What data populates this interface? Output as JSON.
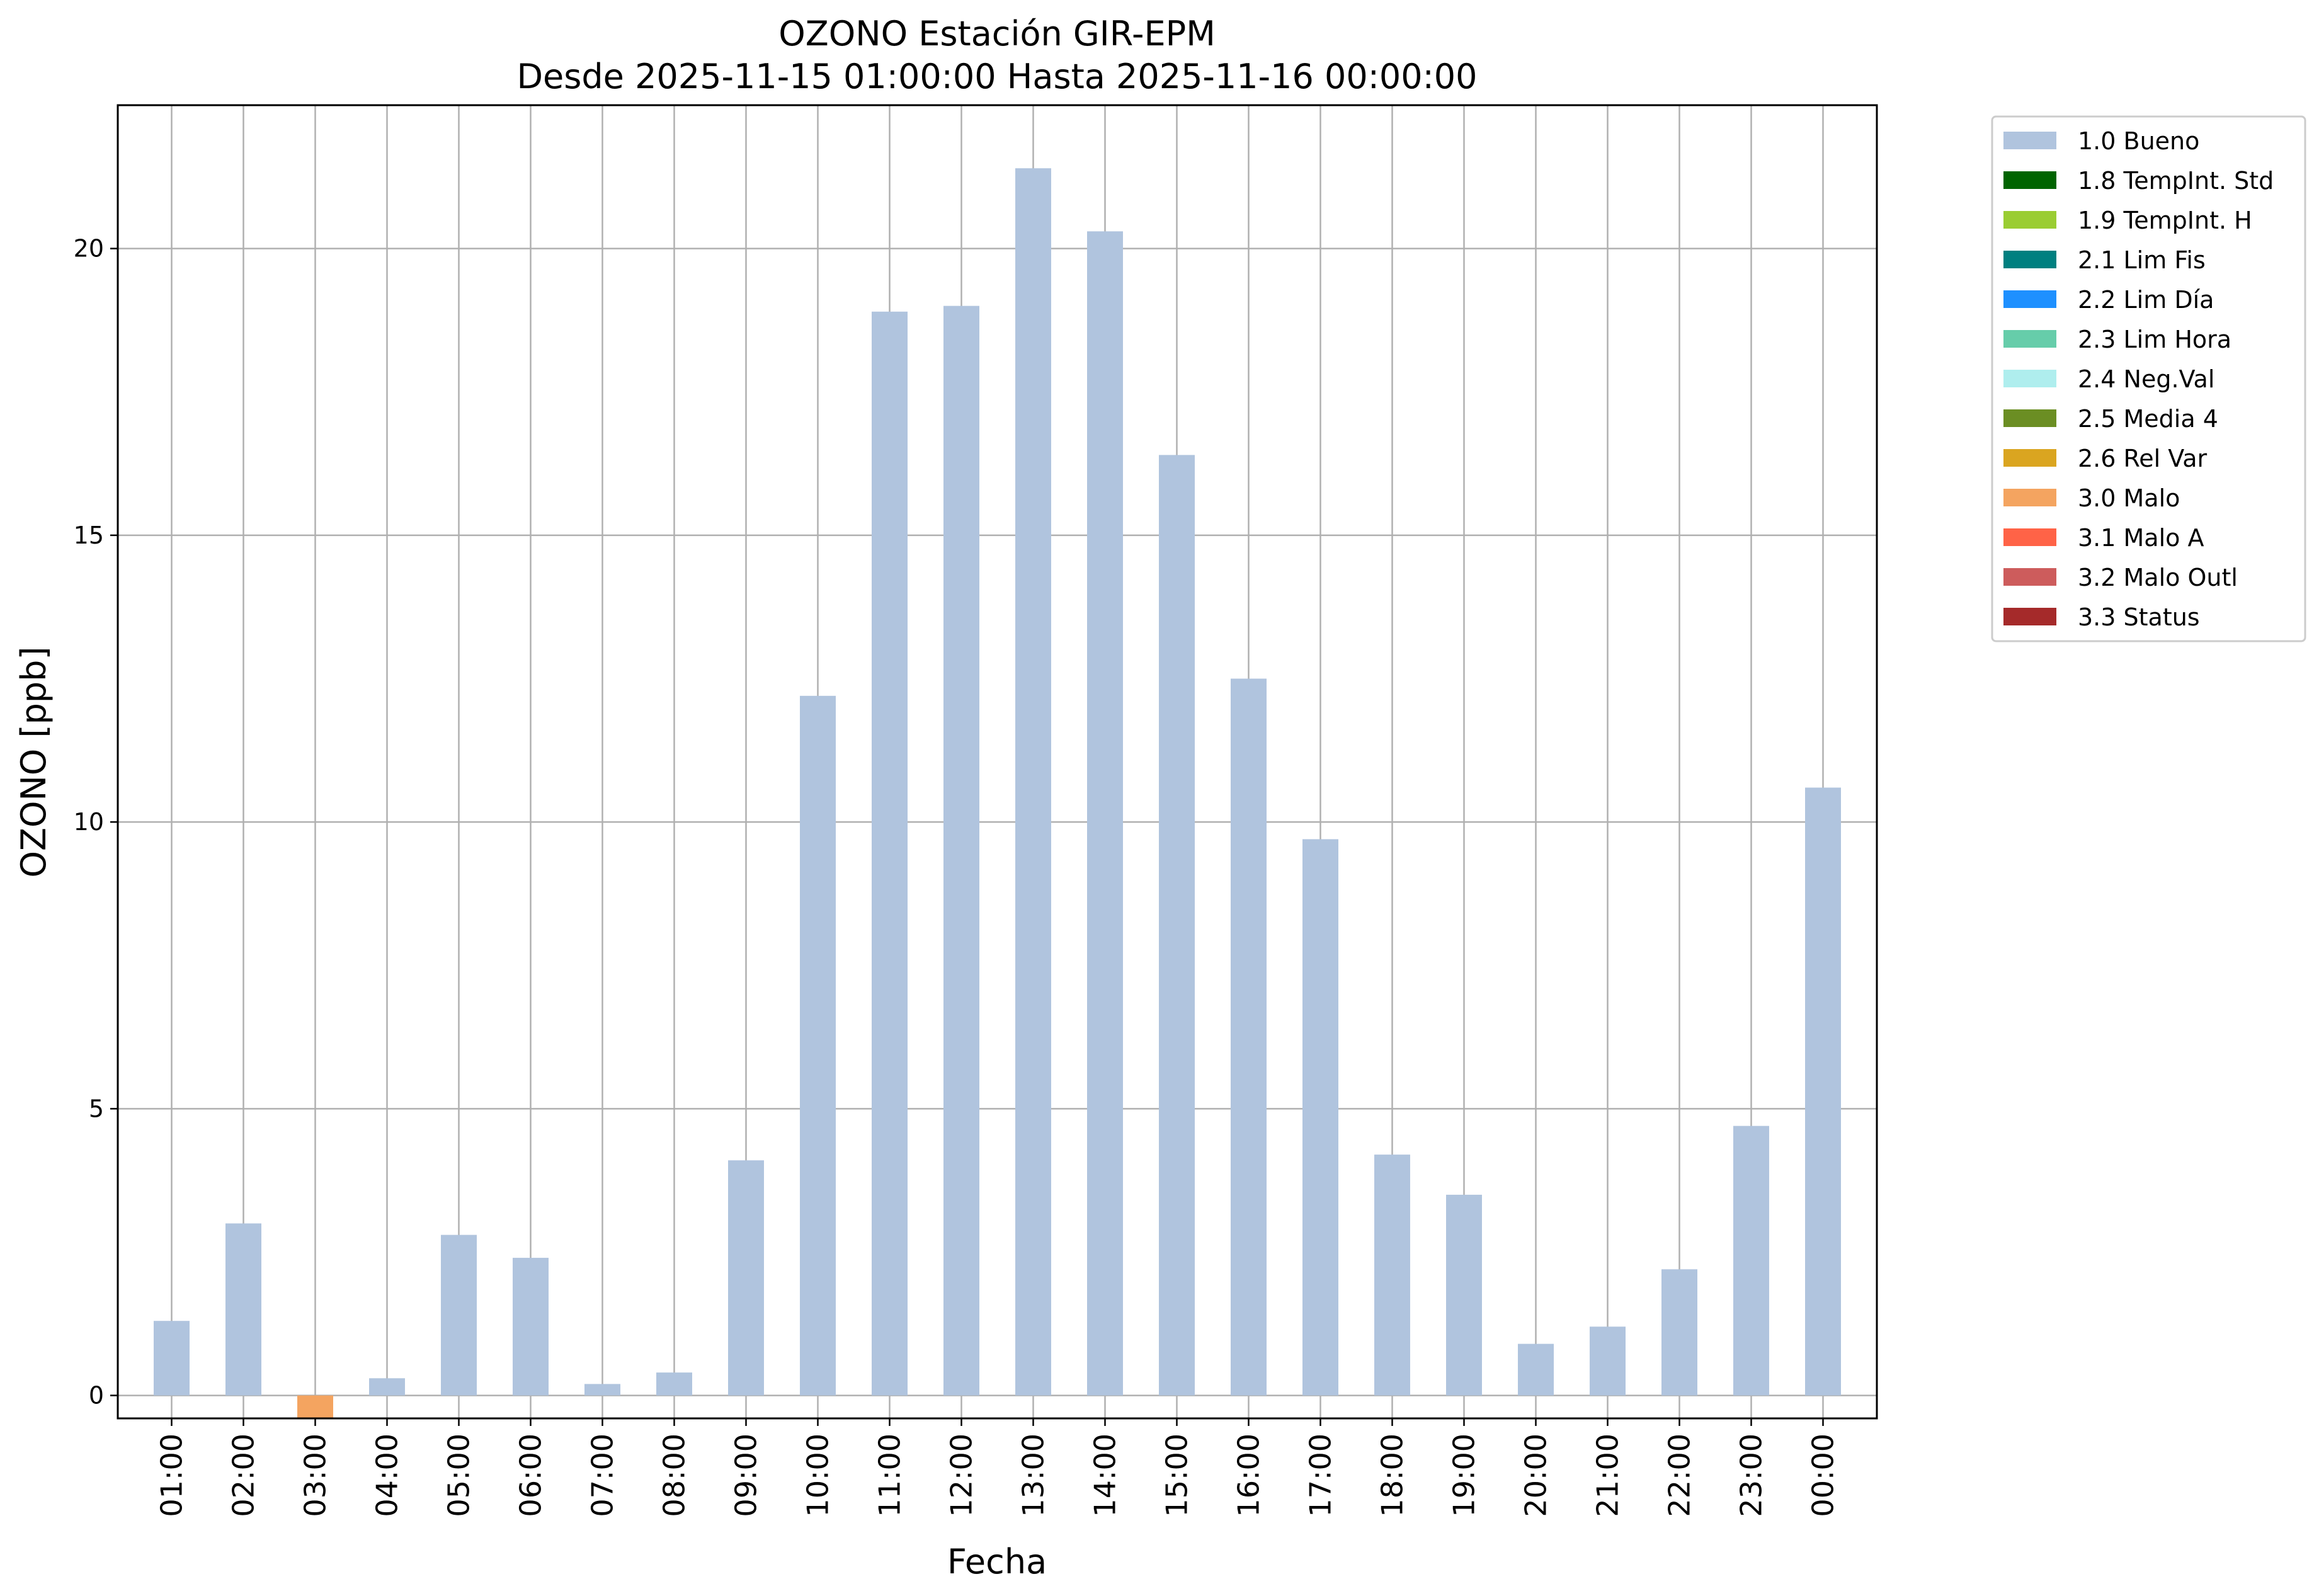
{
  "chart_data": {
    "type": "bar",
    "title": "OZONO Estación GIR-EPM",
    "subtitle": "Desde 2025-11-15 01:00:00 Hasta 2025-11-16 00:00:00",
    "xlabel": "Fecha",
    "ylabel": "OZONO [ppb]",
    "ylim": [
      -0.4,
      22.5
    ],
    "yticks": [
      0,
      5,
      10,
      15,
      20
    ],
    "grid": true,
    "legend_position": "outside-right-top",
    "categories": [
      "01:00",
      "02:00",
      "03:00",
      "04:00",
      "05:00",
      "06:00",
      "07:00",
      "08:00",
      "09:00",
      "10:00",
      "11:00",
      "12:00",
      "13:00",
      "14:00",
      "15:00",
      "16:00",
      "17:00",
      "18:00",
      "19:00",
      "20:00",
      "21:00",
      "22:00",
      "23:00",
      "00:00"
    ],
    "values": [
      1.3,
      3.0,
      -0.4,
      0.3,
      2.8,
      2.4,
      0.2,
      0.4,
      4.1,
      12.2,
      18.9,
      19.0,
      21.4,
      20.3,
      16.4,
      12.5,
      9.7,
      4.2,
      3.5,
      0.9,
      1.2,
      2.2,
      4.7,
      10.6
    ],
    "flags": [
      "1.0",
      "1.0",
      "3.0",
      "1.0",
      "1.0",
      "1.0",
      "1.0",
      "1.0",
      "1.0",
      "1.0",
      "1.0",
      "1.0",
      "1.0",
      "1.0",
      "1.0",
      "1.0",
      "1.0",
      "1.0",
      "1.0",
      "1.0",
      "1.0",
      "1.0",
      "1.0",
      "1.0"
    ],
    "legend": [
      {
        "code": "1.0",
        "label": "1.0 Bueno",
        "color": "#b0c4de"
      },
      {
        "code": "1.8",
        "label": "1.8 TempInt. Std",
        "color": "#006400"
      },
      {
        "code": "1.9",
        "label": "1.9 TempInt. H",
        "color": "#9acd32"
      },
      {
        "code": "2.1",
        "label": "2.1 Lim Fis",
        "color": "#008080"
      },
      {
        "code": "2.2",
        "label": "2.2 Lim Día",
        "color": "#1e90ff"
      },
      {
        "code": "2.3",
        "label": "2.3 Lim Hora",
        "color": "#66cdaa"
      },
      {
        "code": "2.4",
        "label": "2.4 Neg.Val",
        "color": "#afeeee"
      },
      {
        "code": "2.5",
        "label": "2.5 Media 4",
        "color": "#6b8e23"
      },
      {
        "code": "2.6",
        "label": "2.6 Rel Var",
        "color": "#daa520"
      },
      {
        "code": "3.0",
        "label": "3.0 Malo",
        "color": "#f4a460"
      },
      {
        "code": "3.1",
        "label": "3.1 Malo A",
        "color": "#ff6347"
      },
      {
        "code": "3.2",
        "label": "3.2 Malo Outl",
        "color": "#cd5c5c"
      },
      {
        "code": "3.3",
        "label": "3.3 Status",
        "color": "#a52a2a"
      }
    ]
  }
}
